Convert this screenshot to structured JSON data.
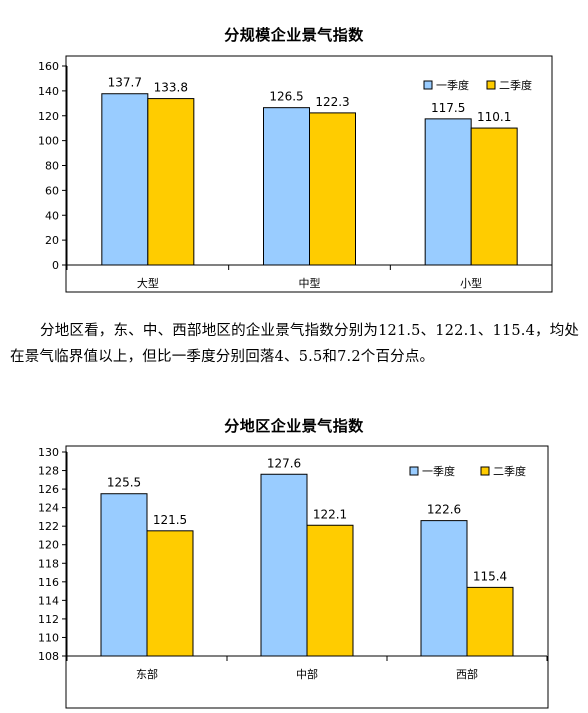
{
  "chart_data": [
    {
      "type": "bar",
      "title": "分规模企业景气指数",
      "categories": [
        "大型",
        "中型",
        "小型"
      ],
      "series": [
        {
          "name": "一季度",
          "values": [
            137.7,
            126.5,
            117.5
          ]
        },
        {
          "name": "二季度",
          "values": [
            133.8,
            122.3,
            110.1
          ]
        }
      ],
      "ylim": [
        0,
        160
      ],
      "yticks": [
        0,
        20,
        40,
        60,
        80,
        100,
        120,
        140,
        160
      ],
      "grid": false,
      "legend": "top-right",
      "data_labels": true
    },
    {
      "type": "bar",
      "title": "分地区企业景气指数",
      "categories": [
        "东部",
        "中部",
        "西部"
      ],
      "series": [
        {
          "name": "一季度",
          "values": [
            125.5,
            127.6,
            122.6
          ]
        },
        {
          "name": "二季度",
          "values": [
            121.5,
            122.1,
            115.4
          ]
        }
      ],
      "ylim": [
        108,
        130
      ],
      "yticks": [
        108,
        110,
        112,
        114,
        116,
        118,
        120,
        122,
        124,
        126,
        128,
        130
      ],
      "grid": false,
      "legend": "top-right",
      "data_labels": true
    }
  ],
  "paragraph": "分地区看，东、中、西部地区的企业景气指数分别为121.5、122.1、115.4，均处在景气临界值以上，但比一季度分别回落4、5.5和7.2个百分点。",
  "colors": {
    "series1": "#99ccff",
    "series2": "#ffcc00",
    "bar_stroke": "#000000",
    "axis": "#000000"
  }
}
